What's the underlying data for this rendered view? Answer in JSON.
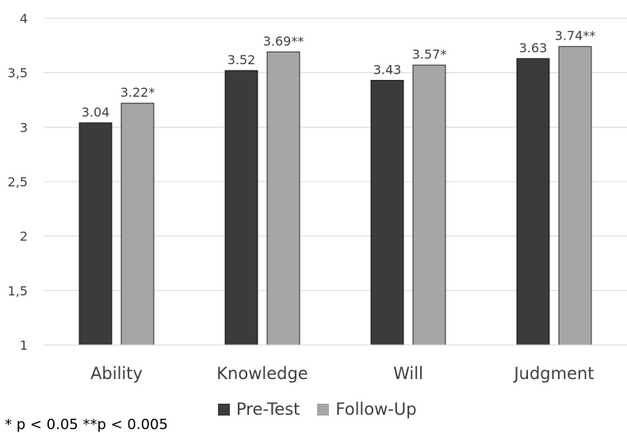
{
  "chart_data": {
    "type": "bar",
    "categories": [
      "Ability",
      "Knowledge",
      "Will",
      "Judgment"
    ],
    "series": [
      {
        "name": "Pre-Test",
        "values": [
          3.04,
          3.52,
          3.43,
          3.63
        ],
        "labels": [
          "3.04",
          "3.52",
          "3.43",
          "3.63"
        ],
        "color": "#3b3b3b"
      },
      {
        "name": "Follow-Up",
        "values": [
          3.22,
          3.69,
          3.57,
          3.74
        ],
        "labels": [
          "3.22*",
          "3.69**",
          "3.57*",
          "3.74**"
        ],
        "color": "#a6a6a6"
      }
    ],
    "yticks": [
      "1",
      "1,5",
      "2",
      "2,5",
      "3",
      "3,5",
      "4"
    ],
    "ylim": [
      1,
      4
    ],
    "grid": true,
    "legend_position": "bottom"
  },
  "footnote": "* p < 0.05  **p < 0.005"
}
